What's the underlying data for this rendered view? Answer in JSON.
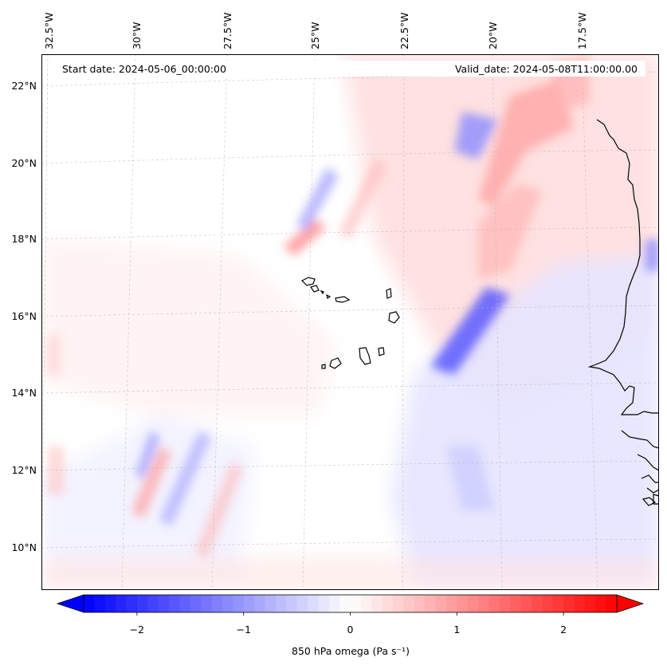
{
  "map": {
    "start_label": "Start date: 2024-05-06_00:00:00",
    "valid_label": "Valid_date: 2024-05-08T11:00:00.00",
    "lon_labels": [
      "32.5°W",
      "30°W",
      "27.5°W",
      "25°W",
      "22.5°W",
      "20°W",
      "17.5°W"
    ],
    "lat_labels": [
      "22°N",
      "20°N",
      "18°N",
      "16°N",
      "14°N",
      "12°N",
      "10°N"
    ],
    "extent": {
      "lon_min": -33.0,
      "lon_max": -16.2,
      "lat_min": 9.0,
      "lat_max": 22.7
    }
  },
  "colorbar": {
    "label": "850 hPa omega (Pa s⁻¹)",
    "ticks": [
      "−2",
      "−1",
      "0",
      "1",
      "2"
    ],
    "tick_values": [
      -2,
      -1,
      0,
      1,
      2
    ],
    "range": [
      -2.5,
      2.5
    ],
    "colors": {
      "neg": "#0000ff",
      "zero": "#ffffff",
      "pos": "#ff0000"
    }
  }
}
